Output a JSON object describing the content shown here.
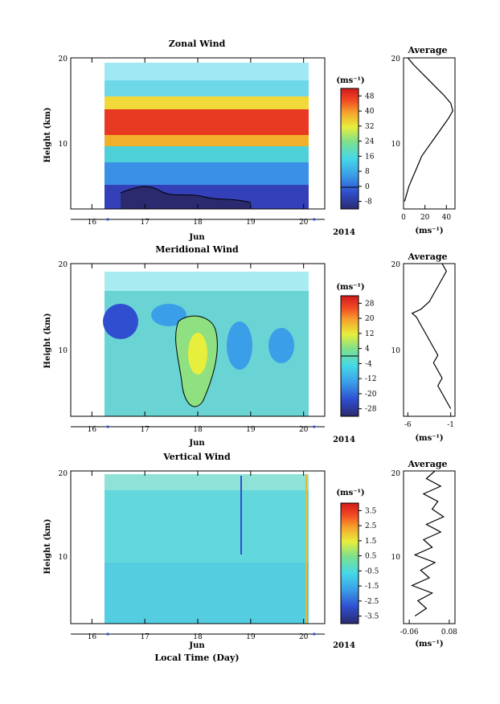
{
  "figure": {
    "xlabel": "Local Time (Day)",
    "month": "Jun",
    "year": "2014",
    "ylabel": "Height (km)",
    "unit": "(ms⁻¹)"
  },
  "chart_data": [
    {
      "id": "zonal",
      "type": "heatmap",
      "title": "Zonal Wind",
      "ylabel": "Height (km)",
      "xlabel": "Jun",
      "x_ticks": [
        "16",
        "17",
        "18",
        "19",
        "20"
      ],
      "y_ticks": [
        "20",
        "10"
      ],
      "xlim": [
        15.6,
        20.4
      ],
      "ylim": [
        0,
        20
      ],
      "data_x_range": [
        16.3,
        20.2
      ],
      "colorbar": {
        "unit": "(ms⁻¹)",
        "labels": [
          "48",
          "40",
          "32",
          "24",
          "16",
          "8",
          "0",
          "-8"
        ],
        "range": [
          -12,
          52
        ],
        "contour": 0
      },
      "profile": {
        "title": "Average",
        "x_ticks": [
          "0",
          "20",
          "40"
        ],
        "xlim": [
          0,
          48
        ],
        "unit": "(ms⁻¹)",
        "points": [
          [
            1,
            1
          ],
          [
            3,
            2
          ],
          [
            5,
            3
          ],
          [
            8,
            4
          ],
          [
            11,
            5
          ],
          [
            14,
            6
          ],
          [
            17,
            7
          ],
          [
            22,
            8
          ],
          [
            27,
            9
          ],
          [
            32,
            10
          ],
          [
            37,
            11
          ],
          [
            42,
            12
          ],
          [
            46,
            13
          ],
          [
            44,
            14
          ],
          [
            38,
            15
          ],
          [
            31,
            16
          ],
          [
            24,
            17
          ],
          [
            17,
            18
          ],
          [
            10,
            19
          ],
          [
            4,
            20
          ]
        ]
      }
    },
    {
      "id": "meridional",
      "type": "heatmap",
      "title": "Meridional Wind",
      "ylabel": "Height (km)",
      "xlabel": "Jun",
      "x_ticks": [
        "16",
        "17",
        "18",
        "19",
        "20"
      ],
      "y_ticks": [
        "20",
        "10"
      ],
      "xlim": [
        15.6,
        20.4
      ],
      "ylim": [
        0,
        20
      ],
      "data_x_range": [
        16.3,
        20.2
      ],
      "colorbar": {
        "unit": "(ms⁻¹)",
        "labels": [
          "28",
          "20",
          "12",
          "4",
          "-4",
          "-12",
          "-20",
          "-28"
        ],
        "range": [
          -32,
          32
        ],
        "contour": 0
      },
      "profile": {
        "title": "Average",
        "x_ticks": [
          "-6",
          "-1"
        ],
        "xlim": [
          -6.5,
          -0.5
        ],
        "unit": "(ms⁻¹)",
        "points": [
          [
            -1,
            1
          ],
          [
            -1.5,
            2
          ],
          [
            -2,
            3
          ],
          [
            -2.5,
            4
          ],
          [
            -2,
            5
          ],
          [
            -2.5,
            6
          ],
          [
            -3,
            7
          ],
          [
            -2.5,
            8
          ],
          [
            -3,
            9
          ],
          [
            -3.5,
            10
          ],
          [
            -4,
            11
          ],
          [
            -4.5,
            12
          ],
          [
            -5,
            13
          ],
          [
            -5.5,
            13.5
          ],
          [
            -4.5,
            14
          ],
          [
            -3.5,
            15
          ],
          [
            -3,
            16
          ],
          [
            -2.5,
            17
          ],
          [
            -2,
            18
          ],
          [
            -1.5,
            19
          ],
          [
            -2,
            20
          ]
        ]
      }
    },
    {
      "id": "vertical",
      "type": "heatmap",
      "title": "Vertical Wind",
      "ylabel": "Height (km)",
      "xlabel": "Jun",
      "x_ticks": [
        "16",
        "17",
        "18",
        "19",
        "20"
      ],
      "y_ticks": [
        "20",
        "10"
      ],
      "xlim": [
        15.6,
        20.4
      ],
      "ylim": [
        0,
        20
      ],
      "data_x_range": [
        16.3,
        20.2
      ],
      "colorbar": {
        "unit": "(ms⁻¹)",
        "labels": [
          "3.5",
          "2.5",
          "1.5",
          "0.5",
          "-0.5",
          "-1.5",
          "-2.5",
          "-3.5"
        ],
        "range": [
          -4,
          4
        ]
      },
      "profile": {
        "title": "Average",
        "x_ticks": [
          "-0.06",
          "0.08"
        ],
        "xlim": [
          -0.08,
          0.1
        ],
        "unit": "(ms⁻¹)",
        "points": [
          [
            -0.04,
            1
          ],
          [
            0.0,
            2
          ],
          [
            -0.03,
            3
          ],
          [
            0.02,
            4
          ],
          [
            -0.05,
            5
          ],
          [
            0.01,
            6
          ],
          [
            -0.02,
            7
          ],
          [
            0.03,
            8
          ],
          [
            -0.04,
            9
          ],
          [
            0.02,
            10
          ],
          [
            -0.01,
            11
          ],
          [
            0.05,
            12
          ],
          [
            0.0,
            13
          ],
          [
            0.06,
            14
          ],
          [
            0.02,
            15
          ],
          [
            0.04,
            16
          ],
          [
            -0.01,
            17
          ],
          [
            0.05,
            18
          ],
          [
            0.0,
            19
          ],
          [
            0.03,
            20
          ]
        ]
      }
    }
  ]
}
